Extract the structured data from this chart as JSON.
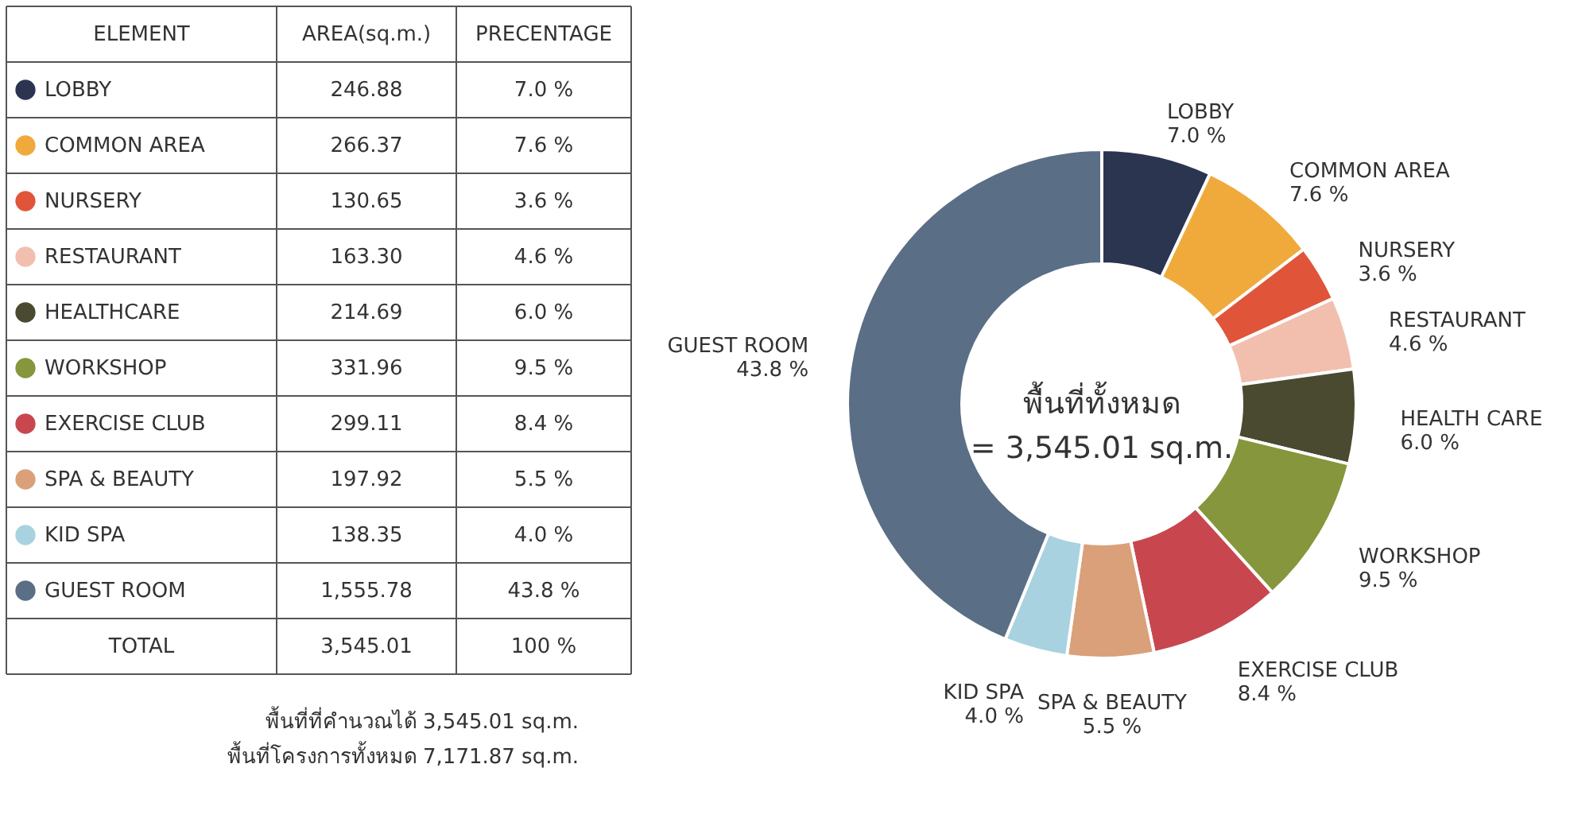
{
  "chart_data": [
    {
      "type": "other",
      "categories": [
        "LOBBY",
        "COMMON AREA",
        "NURSERY",
        "RESTAURANT",
        "HEALTHCARE",
        "WORKSHOP",
        "EXERCISE CLUB",
        "SPA & BEAUTY",
        "KID SPA",
        "GUEST ROOM",
        "TOTAL"
      ],
      "series": [
        {
          "name": "AREA(sq.m.)",
          "values": [
            246.88,
            266.37,
            130.65,
            163.3,
            214.69,
            331.96,
            299.11,
            197.92,
            138.35,
            1555.78,
            3545.01
          ],
          "value_labels": [
            "246.88",
            "266.37",
            "130.65",
            "163.30",
            "214.69",
            "331.96",
            "299.11",
            "197.92",
            "138.35",
            "1,555.78",
            "3,545.01"
          ]
        },
        {
          "name": "PRECENTAGE",
          "values": [
            7.0,
            7.6,
            3.6,
            4.6,
            6.0,
            9.5,
            8.4,
            5.5,
            4.0,
            43.8,
            100
          ],
          "value_labels": [
            "7.0 %",
            "7.6 %",
            "3.6 %",
            "4.6 %",
            "6.0 %",
            "9.5 %",
            "8.4 %",
            "5.5 %",
            "4.0 %",
            "43.8 %",
            "100 %"
          ]
        }
      ],
      "colors": [
        "#2b3550",
        "#f0aa3c",
        "#e0553a",
        "#f2bfae",
        "#4a4a30",
        "#86963c",
        "#c8474f",
        "#d9a07a",
        "#a8d2e0",
        "#5a6e86",
        null
      ],
      "data_labels": true,
      "annotations": [
        "ELEMENT",
        "พื้นที่ที่คำนวณได้ 3,545.01 sq.m.",
        "พื้นที่โครงการทั้งหมด 7,171.87 sq.m."
      ]
    },
    {
      "type": "donut",
      "categories": [
        "LOBBY",
        "COMMON AREA",
        "NURSERY",
        "RESTAURANT",
        "HEALTH CARE",
        "WORKSHOP",
        "EXERCISE CLUB",
        "SPA & BEAUTY",
        "KID SPA",
        "GUEST ROOM"
      ],
      "values": [
        7.0,
        7.6,
        3.6,
        4.6,
        6.0,
        9.5,
        8.4,
        5.5,
        4.0,
        43.8
      ],
      "value_labels": [
        "7.0 %",
        "7.6 %",
        "3.6 %",
        "4.6 %",
        "6.0 %",
        "9.5 %",
        "8.4 %",
        "5.5 %",
        "4.0 %",
        "43.8 %"
      ],
      "colors": [
        "#2b3550",
        "#f0aa3c",
        "#e0553a",
        "#f2bfae",
        "#4a4a30",
        "#86963c",
        "#c8474f",
        "#d9a07a",
        "#a8d2e0",
        "#5a6e86"
      ],
      "annotations": [
        "พื้นที่ทั้งหมด",
        "= 3,545.01 sq.m."
      ]
    }
  ]
}
